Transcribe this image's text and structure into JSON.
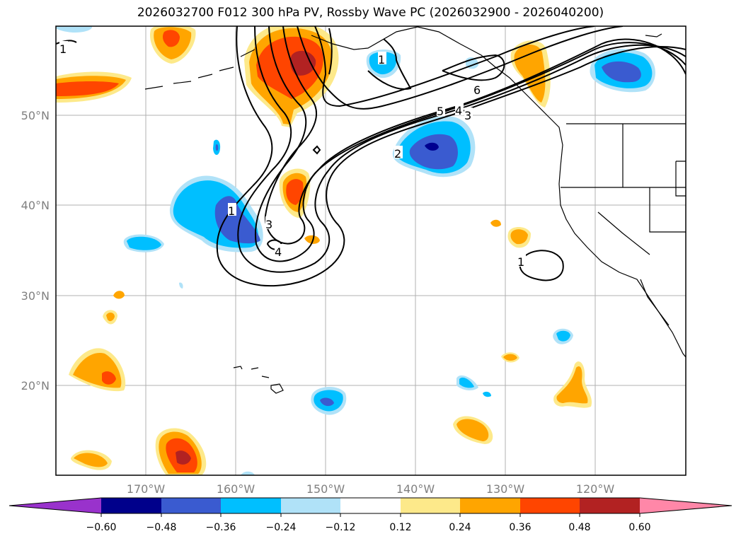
{
  "title": "2026032700 F012 300 hPa PV, Rossby Wave PC (2026032900 - 2026040200)",
  "map": {
    "lon_labels": [
      "170°W",
      "160°W",
      "150°W",
      "140°W",
      "130°W",
      "120°W"
    ],
    "lat_labels": [
      "50°N",
      "40°N",
      "30°N",
      "20°N"
    ],
    "contour_labels": [
      "1",
      "1",
      "2",
      "3",
      "3",
      "4",
      "4",
      "5",
      "6",
      "1",
      "1"
    ],
    "anomaly_colors": {
      "strong_negative": "#3a5bd0",
      "negative": "#00bfff",
      "weak_negative": "#b0e2f8",
      "weak_positive": "#fde98a",
      "positive": "#ffa500",
      "strong_positive": "#ff4500",
      "very_strong_positive": "#b22222",
      "extreme_negative": "#000090"
    }
  },
  "colorbar": {
    "ticks": [
      "−0.60",
      "−0.48",
      "−0.36",
      "−0.24",
      "−0.12",
      "0.12",
      "0.24",
      "0.36",
      "0.48",
      "0.60"
    ],
    "colors": [
      "#9932cc",
      "#00008b",
      "#3a5bd0",
      "#00bfff",
      "#b0e2f8",
      "#ffffff",
      "#fde98a",
      "#ffa500",
      "#ff4500",
      "#b22222",
      "#ff87a8"
    ]
  }
}
